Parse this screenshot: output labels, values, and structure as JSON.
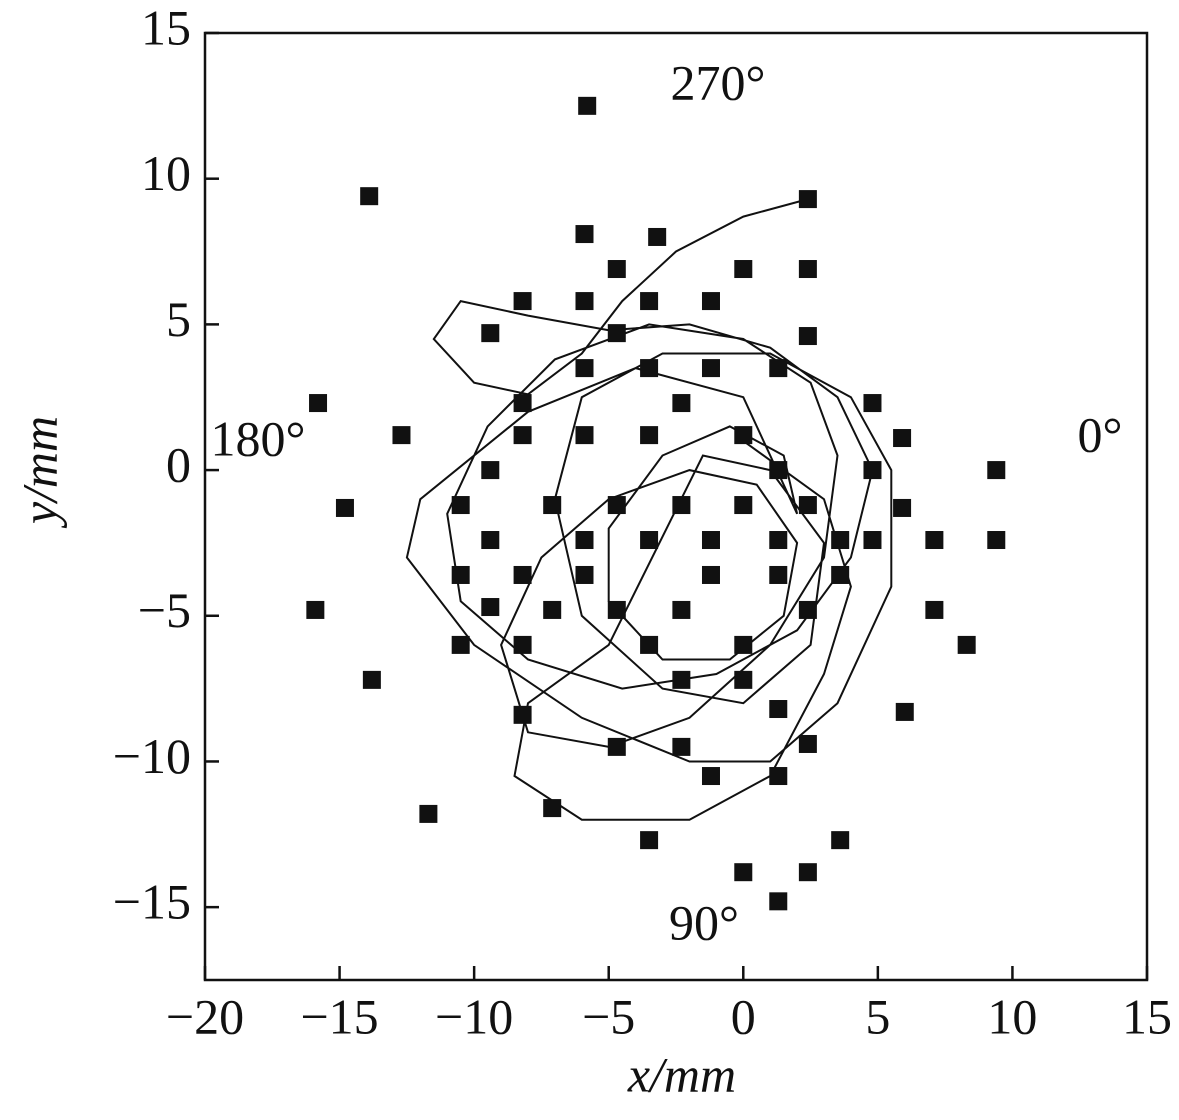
{
  "chart_data": {
    "type": "scatter",
    "xlabel": "x/mm",
    "ylabel": "y/mm",
    "annotations": [
      "270°",
      "180°",
      "0°",
      "90°"
    ],
    "xlim": [
      -20,
      15
    ],
    "ylim": [
      -17.5,
      15
    ],
    "xticks": [
      {
        "value": -20,
        "label": "−20"
      },
      {
        "value": -15,
        "label": "−15"
      },
      {
        "value": -10,
        "label": "−10"
      },
      {
        "value": -5,
        "label": "−5"
      },
      0,
      5,
      10,
      15
    ],
    "yticks": [
      {
        "value": -15,
        "label": "−15"
      },
      {
        "value": -10,
        "label": "−10"
      },
      {
        "value": -5,
        "label": "−5"
      },
      0,
      5,
      10,
      15
    ],
    "color": "#111111",
    "points": {
      "x": [
        -5.8,
        -13.9,
        2.4,
        -5.9,
        -3.2,
        -4.7,
        0,
        2.4,
        -8.2,
        -5.9,
        -3.5,
        -1.2,
        -9.4,
        2.4,
        -4.7,
        -15.8,
        4.8,
        -12.7,
        5.9,
        9.4,
        -14.8,
        5.9,
        -10.5,
        7.1,
        9.4,
        4.8,
        -9.4,
        -10.5,
        -15.9,
        -9.4,
        7.1,
        8.3,
        -10.5,
        -8.2,
        -13.8,
        6.0,
        -8.2,
        1.3,
        -4.7,
        -2.3,
        2.4,
        -1.2,
        1.3,
        -11.7,
        -7.1,
        -3.5,
        3.6,
        0,
        2.4,
        1.3,
        -5.9,
        -3.5,
        -1.2,
        1.3,
        -8.2,
        -2.3,
        -5.9,
        -3.5,
        0,
        -8.2,
        -9.4,
        1.3,
        4.8,
        -7.1,
        -4.7,
        -2.3,
        0,
        2.4,
        -5.9,
        -3.5,
        -1.2,
        1.3,
        3.6,
        -8.2,
        -5.9,
        -1.2,
        1.3,
        3.6,
        -7.1,
        -4.7,
        -2.3,
        2.4,
        -3.5,
        0,
        -2.3,
        0
      ],
      "y": [
        12.5,
        9.4,
        9.3,
        8.1,
        8.0,
        6.9,
        6.9,
        6.9,
        5.8,
        5.8,
        5.8,
        5.8,
        4.7,
        4.6,
        4.7,
        2.3,
        2.3,
        1.2,
        1.1,
        0,
        -1.3,
        -1.3,
        -1.2,
        -2.4,
        -2.4,
        -2.4,
        -2.4,
        -3.6,
        -4.8,
        -4.7,
        -4.8,
        -6.0,
        -6.0,
        -6.0,
        -7.2,
        -8.3,
        -8.4,
        -8.2,
        -9.5,
        -9.5,
        -9.4,
        -10.5,
        -10.5,
        -11.8,
        -11.6,
        -12.7,
        -12.7,
        -13.8,
        -13.8,
        -14.8,
        3.5,
        3.5,
        3.5,
        3.5,
        2.3,
        2.3,
        1.2,
        1.2,
        1.2,
        1.2,
        0,
        0,
        0,
        -1.2,
        -1.2,
        -1.2,
        -1.2,
        -1.2,
        -2.4,
        -2.4,
        -2.4,
        -2.4,
        -2.4,
        -3.6,
        -3.6,
        -3.6,
        -3.6,
        -3.6,
        -4.8,
        -4.8,
        -4.8,
        -4.8,
        -6.0,
        -6.0,
        -7.2,
        -7.2
      ]
    },
    "trajectory": {
      "x": [
        2.4,
        0,
        -2.5,
        -4.5,
        -6,
        -8,
        -10,
        -11.5,
        -10.5,
        -8,
        -5,
        -2,
        1,
        3.5,
        4.8,
        4,
        2,
        -1,
        -4.5,
        -8,
        -10.5,
        -11,
        -9.5,
        -7,
        -3.5,
        0,
        2.5,
        3.5,
        3,
        1,
        -2,
        -5,
        -8,
        -9,
        -7.5,
        -5,
        -2,
        0.5,
        2,
        1.5,
        -0.5,
        -3,
        -5,
        -5,
        -3,
        -0.5,
        1.5,
        2,
        0,
        -4,
        -8,
        -12,
        -12.5,
        -10,
        -6,
        -2,
        1,
        3.5,
        5.5,
        5.5,
        4,
        1,
        -3,
        -6,
        -7,
        -6,
        -3,
        0,
        2.5,
        3,
        1,
        -1.5,
        -5,
        -8,
        -8.5,
        -6,
        -2,
        1,
        3,
        4,
        3,
        0
      ],
      "y": [
        9.3,
        8.7,
        7.5,
        5.8,
        4,
        2.6,
        3,
        4.5,
        5.8,
        5.3,
        4.8,
        5,
        4.2,
        2.5,
        0,
        -3,
        -5.5,
        -7,
        -7.5,
        -6.5,
        -4.5,
        -1.5,
        1.5,
        3.8,
        5,
        4.5,
        3,
        0.5,
        -3,
        -6,
        -8.5,
        -9.5,
        -9,
        -6,
        -3,
        -1,
        0,
        -0.5,
        -2.5,
        -5,
        -6.5,
        -6.5,
        -4.5,
        -2,
        0.5,
        1.5,
        0.5,
        -1.5,
        2.5,
        3.5,
        2,
        -1,
        -3,
        -6,
        -8.5,
        -10,
        -10,
        -8,
        -4,
        0,
        2.5,
        4,
        4,
        2.5,
        -1,
        -5,
        -7.5,
        -8,
        -6,
        -2.5,
        0,
        0.5,
        -6,
        -8,
        -10.5,
        -12,
        -12,
        -10.5,
        -7,
        -4,
        -1,
        1
      ]
    }
  }
}
